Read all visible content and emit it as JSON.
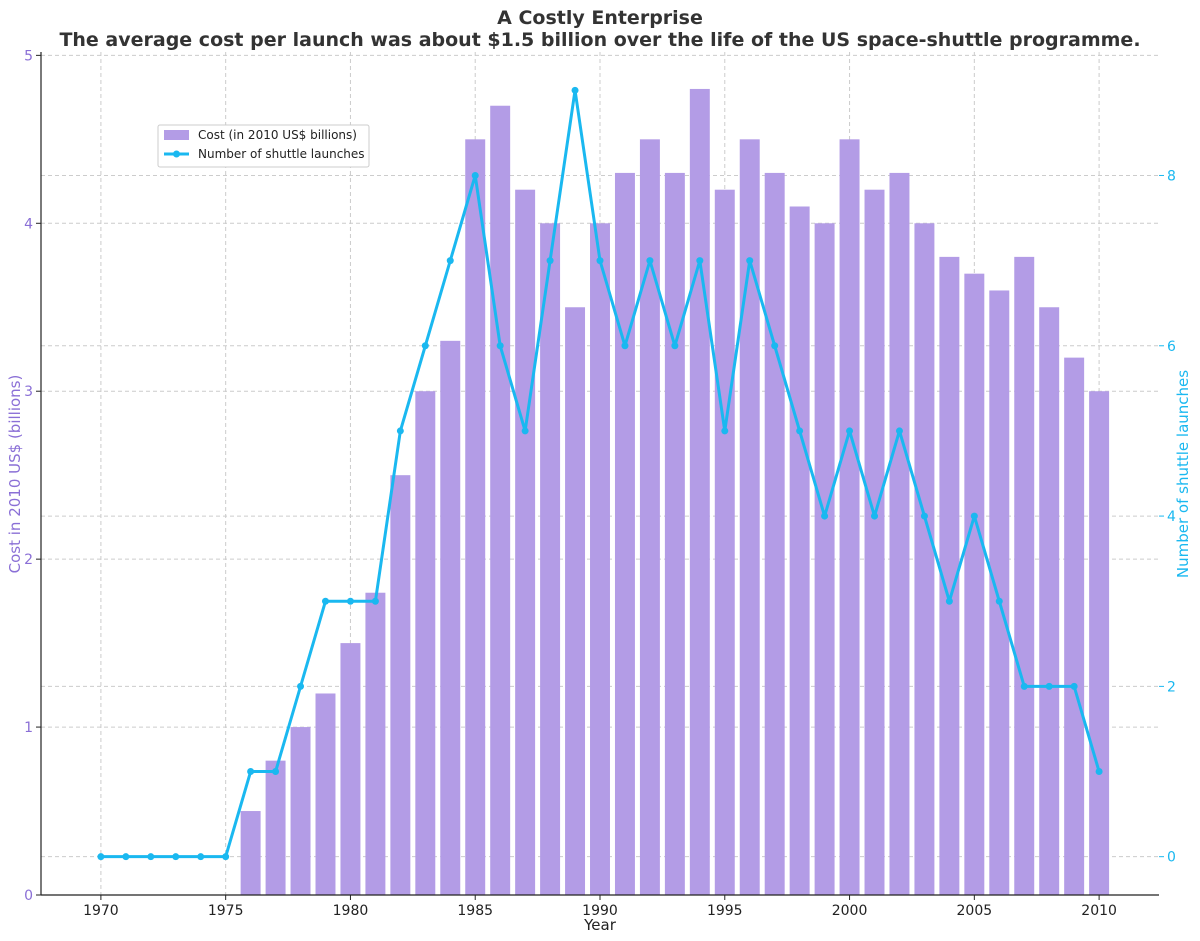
{
  "chart_data": {
    "type": "bar",
    "title": "A Costly Enterprise",
    "subtitle": "The average cost per launch was about $1.5 billion over the life of the US space-shuttle programme.",
    "xlabel": "Year",
    "ylabel_left": "Cost in 2010 US$ (billions)",
    "ylabel_right": "Number of shuttle launches",
    "x": [
      1970,
      1971,
      1972,
      1973,
      1974,
      1975,
      1976,
      1977,
      1978,
      1979,
      1980,
      1981,
      1982,
      1983,
      1984,
      1985,
      1986,
      1987,
      1988,
      1989,
      1990,
      1991,
      1992,
      1993,
      1994,
      1995,
      1996,
      1997,
      1998,
      1999,
      2000,
      2001,
      2002,
      2003,
      2004,
      2005,
      2006,
      2007,
      2008,
      2009,
      2010
    ],
    "x_ticks": [
      1970,
      1975,
      1980,
      1985,
      1990,
      1995,
      2000,
      2005,
      2010
    ],
    "xlim": [
      1967.6,
      2012.4
    ],
    "y_left_ticks": [
      0,
      1,
      2,
      3,
      4,
      5
    ],
    "ylim_left": [
      0,
      5.02
    ],
    "y_right_ticks": [
      0,
      2,
      4,
      6,
      8
    ],
    "ylim_right": [
      -0.45,
      9.45
    ],
    "grid": true,
    "legend_position": "upper-left",
    "series": [
      {
        "name": "Cost (in 2010 US$ billions)",
        "kind": "bar",
        "axis": "left",
        "color": "#b39ce6",
        "values": [
          null,
          null,
          null,
          null,
          null,
          null,
          0.5,
          0.8,
          1.0,
          1.2,
          1.5,
          1.8,
          2.5,
          3.0,
          3.3,
          4.5,
          4.7,
          4.2,
          4.0,
          3.5,
          4.0,
          4.3,
          4.5,
          4.3,
          4.8,
          4.2,
          4.5,
          4.3,
          4.1,
          4.0,
          4.5,
          4.2,
          4.3,
          4.0,
          3.8,
          3.7,
          3.6,
          3.8,
          3.5,
          3.2,
          3.0
        ]
      },
      {
        "name": "Number of shuttle launches",
        "kind": "line",
        "axis": "right",
        "color": "#1ab8f0",
        "values": [
          0,
          0,
          0,
          0,
          0,
          0,
          1,
          1,
          2,
          3,
          3,
          3,
          5,
          6,
          7,
          8,
          6,
          5,
          7,
          9,
          7,
          6,
          7,
          6,
          7,
          5,
          7,
          6,
          5,
          4,
          5,
          4,
          5,
          4,
          3,
          4,
          3,
          2,
          2,
          2,
          1
        ]
      }
    ],
    "colors": {
      "left_axis": "#8a6fd6",
      "right_axis": "#1ab8f0",
      "title": "#333333",
      "grid": "#cccccc"
    }
  }
}
